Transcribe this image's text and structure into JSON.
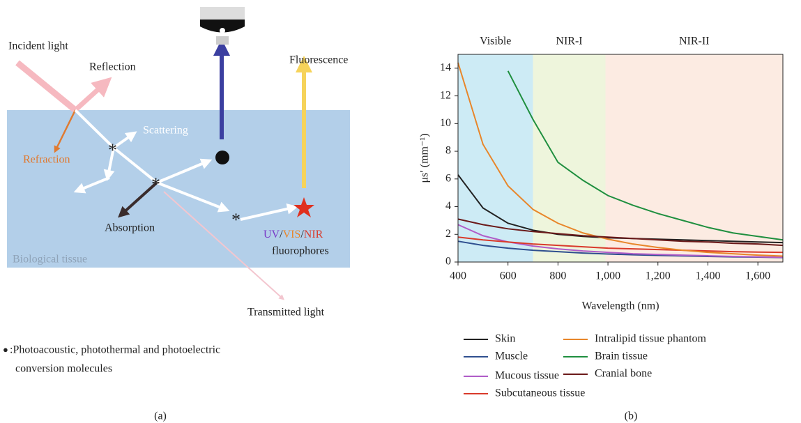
{
  "diagram": {
    "incident": "Incident light",
    "reflection": "Reflection",
    "scattering": "Scattering",
    "refraction": "Refraction",
    "absorption": "Absorption",
    "fluorescence": "Fluorescence",
    "fluorophore_types": [
      "UV",
      "/",
      "VIS",
      "/",
      "NIR"
    ],
    "fluorophores": "fluorophores",
    "tissue": "Biological tissue",
    "transmitted": "Transmitted light",
    "note_symbol": "●",
    "note_line1": ":Photoacoustic, photothermal and photoelectric",
    "note_line2": "conversion molecules",
    "panel": "(a)"
  },
  "chart_data": {
    "type": "line",
    "panel": "(b)",
    "xlabel": "Wavelength (nm)",
    "ylabel": "μs′ (mm⁻¹)",
    "x": [
      400,
      500,
      600,
      700,
      800,
      900,
      1000,
      1100,
      1200,
      1300,
      1400,
      1500,
      1600,
      1700
    ],
    "xlim": [
      400,
      1700
    ],
    "ylim": [
      0,
      15
    ],
    "xticks": [
      400,
      600,
      800,
      {
        "value": 1000,
        "label": "1,000"
      },
      {
        "value": 1200,
        "label": "1,200"
      },
      {
        "value": 1400,
        "label": "1,400"
      },
      {
        "value": 1600,
        "label": "1,600"
      }
    ],
    "yticks": [
      0,
      2,
      4,
      6,
      8,
      10,
      12,
      14
    ],
    "regions": [
      {
        "label": "Visible",
        "range": [
          400,
          700
        ],
        "color": "#cdebf5"
      },
      {
        "label": "NIR-I",
        "range": [
          700,
          990
        ],
        "color": "#eef5dc"
      },
      {
        "label": "NIR-II",
        "range": [
          990,
          1700
        ],
        "color": "#fcebe2"
      }
    ],
    "series": [
      {
        "name": "Skin",
        "color": "#222222",
        "values": [
          6.3,
          3.9,
          2.8,
          2.3,
          2.0,
          1.85,
          1.75,
          1.7,
          1.65,
          1.6,
          1.55,
          1.5,
          1.45,
          1.4
        ]
      },
      {
        "name": "Muscle",
        "color": "#2f4f8f",
        "values": [
          1.5,
          1.2,
          1.0,
          0.85,
          0.75,
          0.65,
          0.58,
          0.52,
          0.48,
          0.44,
          0.4,
          0.37,
          0.35,
          0.32
        ]
      },
      {
        "name": "Mucous tissue",
        "color": "#b05cc8",
        "values": [
          2.7,
          1.9,
          1.45,
          1.15,
          0.95,
          0.8,
          0.7,
          0.6,
          0.55,
          0.5,
          0.45,
          0.4,
          0.37,
          0.34
        ]
      },
      {
        "name": "Subcutaneous tissue",
        "color": "#d93a2b",
        "values": [
          1.8,
          1.6,
          1.45,
          1.3,
          1.2,
          1.1,
          1.0,
          0.95,
          0.9,
          0.85,
          0.8,
          0.75,
          0.72,
          0.7
        ]
      },
      {
        "name": "Intralipid tissue phantom",
        "color": "#e8862a",
        "values": [
          14.4,
          8.5,
          5.5,
          3.8,
          2.8,
          2.1,
          1.65,
          1.3,
          1.05,
          0.85,
          0.7,
          0.6,
          0.5,
          0.43
        ]
      },
      {
        "name": "Brain tissue",
        "color": "#1f8f3f",
        "values": [
          null,
          null,
          13.8,
          10.3,
          7.2,
          5.9,
          4.8,
          4.1,
          3.5,
          3.0,
          2.5,
          2.1,
          1.85,
          1.6
        ]
      },
      {
        "name": "Cranial bone",
        "color": "#6b1a1a",
        "values": [
          3.1,
          2.7,
          2.4,
          2.2,
          2.05,
          1.9,
          1.8,
          1.7,
          1.6,
          1.5,
          1.45,
          1.35,
          1.3,
          1.2
        ]
      }
    ]
  }
}
